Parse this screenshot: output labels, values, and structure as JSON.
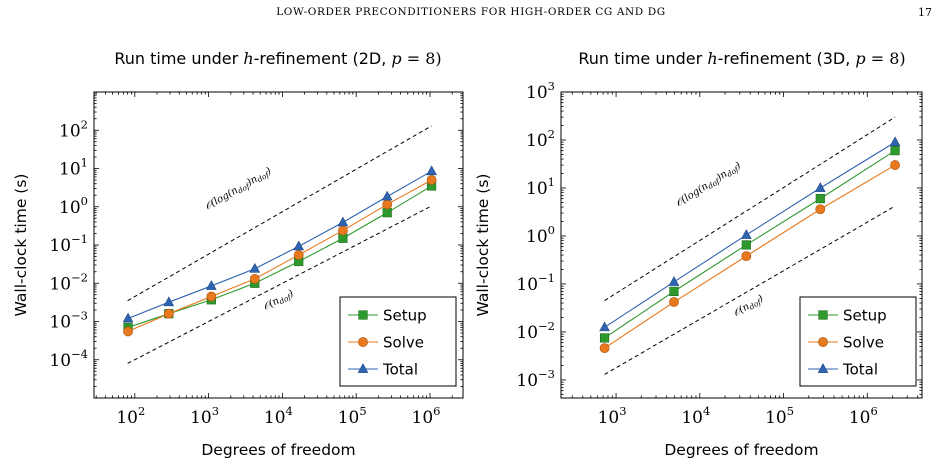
{
  "page": {
    "running_head": "LOW-ORDER PRECONDITIONERS FOR HIGH-ORDER CG AND DG",
    "page_number": "17"
  },
  "colors": {
    "setup": "#2e9a2e",
    "solve": "#e8791e",
    "total": "#2f64b0"
  },
  "chart_data": [
    {
      "type": "line",
      "title": "Run time under h-refinement (2D, p = 8)",
      "xlabel": "Degrees of freedom",
      "ylabel": "Wall-clock time (s)",
      "xscale": "log",
      "yscale": "log",
      "xlim": [
        28,
        2800000
      ],
      "ylim": [
        1e-05,
        1000
      ],
      "xticks": [
        2,
        3,
        4,
        5,
        6
      ],
      "yticks": [
        -4,
        -3,
        -2,
        -1,
        0,
        1,
        2
      ],
      "legend": "bottom-right",
      "x": [
        81,
        289,
        1089,
        4225,
        16641,
        66049,
        263169,
        1050625
      ],
      "series": [
        {
          "name": "Setup",
          "marker": "square",
          "values": [
            0.0007,
            0.0016,
            0.0037,
            0.01,
            0.037,
            0.15,
            0.7,
            3.5
          ]
        },
        {
          "name": "Solve",
          "marker": "circle",
          "values": [
            0.00055,
            0.0016,
            0.0045,
            0.013,
            0.055,
            0.24,
            1.15,
            5.0
          ]
        },
        {
          "name": "Total",
          "marker": "triangle",
          "values": [
            0.0012,
            0.0032,
            0.0085,
            0.024,
            0.092,
            0.39,
            1.85,
            8.5
          ]
        }
      ],
      "references": [
        {
          "label": "O(log(n_dof) n_dof)",
          "x": [
            80,
            1050625
          ],
          "y": [
            0.0035,
            130
          ],
          "text_parts": [
            "𝒪(log(n",
            "dof",
            ")n",
            "dof",
            ")"
          ]
        },
        {
          "label": "O(n_dof)",
          "x": [
            80,
            1050625
          ],
          "y": [
            8e-05,
            1.05
          ],
          "text_parts": [
            "𝒪(n",
            "dof",
            ")"
          ]
        }
      ]
    },
    {
      "type": "line",
      "title": "Run time under h-refinement (3D, p = 8)",
      "xlabel": "Degrees of freedom",
      "ylabel": "Wall-clock time (s)",
      "xscale": "log",
      "yscale": "log",
      "xlim": [
        220,
        4500000
      ],
      "ylim": [
        0.00042,
        1000
      ],
      "xticks": [
        3,
        4,
        5,
        6
      ],
      "yticks": [
        -3,
        -2,
        -1,
        0,
        1,
        2,
        3
      ],
      "legend": "bottom-right",
      "x": [
        729,
        4913,
        35937,
        274625,
        2146689
      ],
      "series": [
        {
          "name": "Setup",
          "marker": "square",
          "values": [
            0.0075,
            0.07,
            0.65,
            6.0,
            60
          ]
        },
        {
          "name": "Solve",
          "marker": "circle",
          "values": [
            0.0046,
            0.042,
            0.38,
            3.6,
            30
          ]
        },
        {
          "name": "Total",
          "marker": "triangle",
          "values": [
            0.0125,
            0.11,
            1.05,
            10,
            90
          ]
        }
      ],
      "references": [
        {
          "label": "O(log(n_dof) n_dof)",
          "x": [
            729,
            2146689
          ],
          "y": [
            0.045,
            300
          ],
          "text_parts": [
            "𝒪(log(n",
            "dof",
            ")n",
            "dof",
            ")"
          ]
        },
        {
          "label": "O(n_dof)",
          "x": [
            729,
            2146689
          ],
          "y": [
            0.0013,
            4.2
          ],
          "text_parts": [
            "𝒪(n",
            "dof",
            ")"
          ]
        }
      ]
    }
  ]
}
